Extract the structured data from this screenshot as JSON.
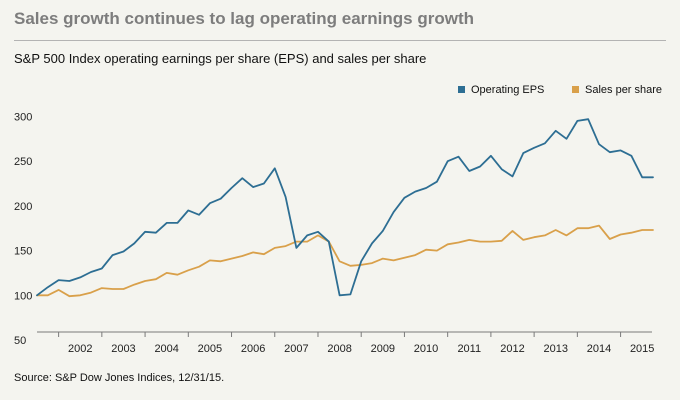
{
  "header": {
    "title": "Sales growth continues to lag operating earnings growth",
    "subtitle": "S&P 500 Index operating earnings per share (EPS) and sales per share"
  },
  "footer": {
    "source": "Source: S&P Dow Jones Indices, 12/31/15."
  },
  "chart_data": {
    "type": "line",
    "title": "S&P 500 Index operating earnings per share (EPS) and sales per share",
    "xlabel": "",
    "ylabel": "",
    "xlim": [
      2001.5,
      2015.75
    ],
    "ylim": [
      50,
      305
    ],
    "y_ticks": [
      50,
      100,
      150,
      200,
      250,
      300
    ],
    "x_tick_labels": [
      "2002",
      "2003",
      "2004",
      "2005",
      "2006",
      "2007",
      "2008",
      "2009",
      "2010",
      "2011",
      "2012",
      "2013",
      "2014",
      "2015"
    ],
    "legend_position": "top-right",
    "grid": false,
    "series": [
      {
        "name": "Operating EPS",
        "color": "#2d6e93",
        "x": [
          2001.5,
          2001.75,
          2002.0,
          2002.25,
          2002.5,
          2002.75,
          2003.0,
          2003.25,
          2003.5,
          2003.75,
          2004.0,
          2004.25,
          2004.5,
          2004.75,
          2005.0,
          2005.25,
          2005.5,
          2005.75,
          2006.0,
          2006.25,
          2006.5,
          2006.75,
          2007.0,
          2007.25,
          2007.5,
          2007.75,
          2008.0,
          2008.25,
          2008.5,
          2008.75,
          2009.0,
          2009.25,
          2009.5,
          2009.75,
          2010.0,
          2010.25,
          2010.5,
          2010.75,
          2011.0,
          2011.25,
          2011.5,
          2011.75,
          2012.0,
          2012.25,
          2012.5,
          2012.75,
          2013.0,
          2013.25,
          2013.5,
          2013.75,
          2014.0,
          2014.25,
          2014.5,
          2014.75,
          2015.0,
          2015.25,
          2015.5,
          2015.75
        ],
        "values": [
          100,
          109,
          117,
          116,
          120,
          126,
          130,
          145,
          149,
          158,
          171,
          170,
          181,
          181,
          195,
          190,
          203,
          208,
          220,
          231,
          221,
          225,
          242,
          210,
          153,
          167,
          171,
          160,
          100,
          101,
          138,
          158,
          172,
          193,
          209,
          216,
          220,
          227,
          250,
          255,
          239,
          244,
          256,
          241,
          233,
          259,
          265,
          270,
          284,
          275,
          295,
          297,
          269,
          260,
          262,
          256,
          232,
          232
        ]
      },
      {
        "name": "Sales per share",
        "color": "#d9a04a",
        "x": [
          2001.5,
          2001.75,
          2002.0,
          2002.25,
          2002.5,
          2002.75,
          2003.0,
          2003.25,
          2003.5,
          2003.75,
          2004.0,
          2004.25,
          2004.5,
          2004.75,
          2005.0,
          2005.25,
          2005.5,
          2005.75,
          2006.0,
          2006.25,
          2006.5,
          2006.75,
          2007.0,
          2007.25,
          2007.5,
          2007.75,
          2008.0,
          2008.25,
          2008.5,
          2008.75,
          2009.0,
          2009.25,
          2009.5,
          2009.75,
          2010.0,
          2010.25,
          2010.5,
          2010.75,
          2011.0,
          2011.25,
          2011.5,
          2011.75,
          2012.0,
          2012.25,
          2012.5,
          2012.75,
          2013.0,
          2013.25,
          2013.5,
          2013.75,
          2014.0,
          2014.25,
          2014.5,
          2014.75,
          2015.0,
          2015.25,
          2015.5,
          2015.75
        ],
        "values": [
          100,
          100,
          106,
          99,
          100,
          103,
          108,
          107,
          107,
          112,
          116,
          118,
          125,
          123,
          128,
          132,
          139,
          138,
          141,
          144,
          148,
          146,
          153,
          155,
          160,
          160,
          167,
          160,
          138,
          133,
          134,
          136,
          141,
          139,
          142,
          145,
          151,
          150,
          157,
          159,
          162,
          160,
          160,
          161,
          172,
          162,
          165,
          167,
          173,
          167,
          175,
          175,
          178,
          163,
          168,
          170,
          173,
          173
        ]
      }
    ]
  }
}
